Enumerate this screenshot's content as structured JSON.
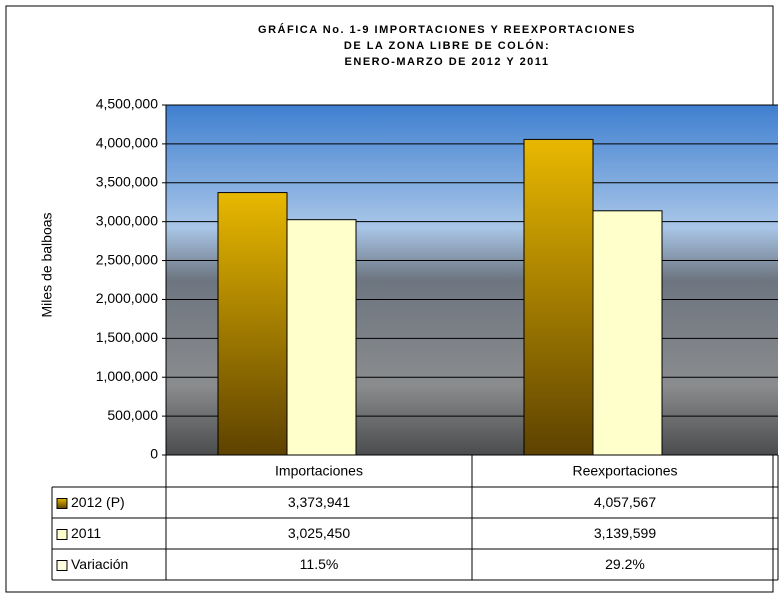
{
  "chart_data": {
    "type": "bar",
    "title_lines": [
      "GRÁFICA No. 1-9 IMPORTACIONES Y REEXPORTACIONES",
      "DE LA ZONA LIBRE DE COLÓN:",
      "ENERO-MARZO DE 2012 Y 2011"
    ],
    "y_label": "Miles de balboas",
    "categories": [
      "Importaciones",
      "Reexportaciones"
    ],
    "series": [
      {
        "name": "2012 (P)",
        "color": "#e8b800",
        "values": [
          3373941,
          4057567
        ],
        "value_labels": [
          "3,373,941",
          "4,057,567"
        ]
      },
      {
        "name": "2011",
        "color": "#ffffcc",
        "values": [
          3025450,
          3139599
        ],
        "value_labels": [
          "3,025,450",
          "3,139,599"
        ]
      }
    ],
    "variation": {
      "name": "Variación",
      "color": "#ffffe0",
      "values": [
        11.5,
        29.2
      ],
      "value_labels": [
        "11.5%",
        "29.2%"
      ]
    },
    "ylim": [
      0,
      4500000
    ],
    "yticks": [
      0,
      {
        "value": 500000,
        "label": "500,000"
      },
      {
        "value": 1000000,
        "label": "1,000,000"
      },
      {
        "value": 1500000,
        "label": "1,500,000"
      },
      {
        "value": 2000000,
        "label": "2,000,000"
      },
      {
        "value": 2500000,
        "label": "2,500,000"
      },
      {
        "value": 3000000,
        "label": "3,000,000"
      },
      {
        "value": 3500000,
        "label": "3,500,000"
      },
      {
        "value": 4000000,
        "label": "4,000,000"
      },
      {
        "value": 4500000,
        "label": "4,500,000"
      }
    ],
    "grid": true
  }
}
